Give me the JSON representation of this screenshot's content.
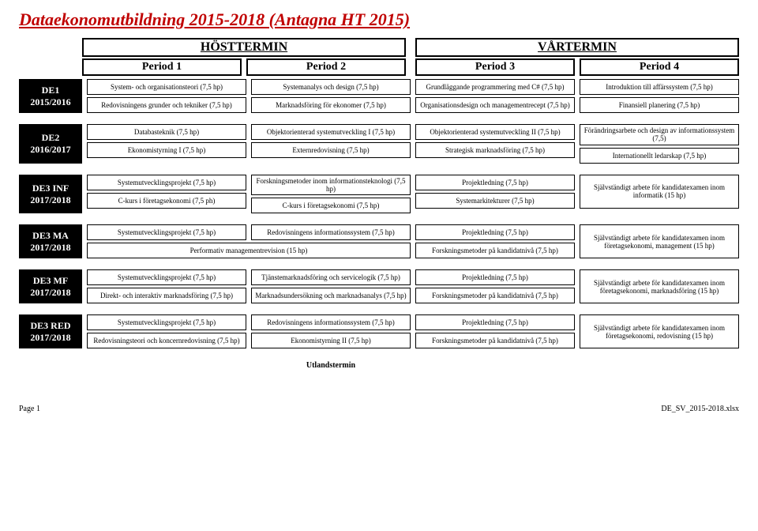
{
  "title": "Dataekonomutbildning 2015-2018 (Antagna HT 2015)",
  "terms": {
    "left": "HÖSTTERMIN",
    "right": "VÅRTERMIN"
  },
  "periods": [
    "Period 1",
    "Period 2",
    "Period 3",
    "Period 4"
  ],
  "rows": [
    {
      "label_line1": "DE1",
      "label_line2": "2015/2016",
      "cols": [
        [
          "System- och organisationsteori (7,5 hp)",
          "Redovisningens grunder och tekniker (7,5 hp)"
        ],
        [
          "Systemanalys och design (7,5 hp)",
          "Marknadsföring för ekonomer (7,5 hp)"
        ],
        [
          "Grundläggande programmering med C# (7,5 hp)",
          "Organisationsdesign och managementrecept (7,5 hp)"
        ],
        [
          "Introduktion till affärssystem (7,5 hp)",
          "Finansiell planering (7,5 hp)"
        ]
      ]
    },
    {
      "label_line1": "DE2",
      "label_line2": "2016/2017",
      "cols": [
        [
          "Databasteknik (7,5 hp)",
          "Ekonomistyrning I (7,5 hp)"
        ],
        [
          "Objektorienterad systemutveckling I (7,5 hp)",
          "Externredovisning (7,5 hp)"
        ],
        [
          "Objektorienterad systemutveckling II (7,5 hp)",
          "Strategisk marknadsföring (7,5 hp)"
        ],
        [
          "Förändringsarbete och design av informationssystem (7,5)",
          "Internationellt ledarskap (7,5 hp)"
        ]
      ]
    },
    {
      "label_line1": "DE3 INF",
      "label_line2": "2017/2018",
      "cols": [
        [
          "Systemutvecklingsprojekt (7,5 hp)",
          "C-kurs i företagsekonomi (7,5 ph)"
        ],
        [
          "Forskningsmetoder inom informationsteknologi (7,5 hp)",
          "C-kurs i företagsekonomi (7,5 hp)"
        ],
        [
          "Projektledning (7,5 hp)",
          "Systemarkitekturer (7,5 hp)"
        ],
        [
          {
            "text": "Självständigt arbete för kandidatexamen inom informatik (15 hp)",
            "tall": true
          }
        ]
      ]
    },
    {
      "label_line1": "DE3 MA",
      "label_line2": "2017/2018",
      "cols": [
        [
          "Systemutvecklingsprojekt (7,5 hp)",
          {
            "text": "Performativ managementrevision (15 hp)",
            "span": true
          }
        ],
        [
          "Redovisningens informationssystem (7,5 hp)"
        ],
        [
          "Projektledning (7,5 hp)",
          "Forskningsmetoder på kandidatnivå (7,5 hp)"
        ],
        [
          {
            "text": "Självständigt arbete för kandidatexamen inom företagsekonomi, management (15 hp)",
            "tall": true
          }
        ]
      ]
    },
    {
      "label_line1": "DE3 MF",
      "label_line2": "2017/2018",
      "cols": [
        [
          "Systemutvecklingsprojekt (7,5 hp)",
          "Direkt- och interaktiv marknadsföring (7,5 hp)"
        ],
        [
          "Tjänstemarknadsföring och servicelogik (7,5 hp)",
          "Marknadsundersökning och marknadsanalys (7,5 hp)"
        ],
        [
          "Projektledning (7,5 hp)",
          "Forskningsmetoder på kandidatnivå (7,5 hp)"
        ],
        [
          {
            "text": "Självständigt arbete för kandidatexamen inom företagsekonomi, marknadsföring (15 hp)",
            "tall": true
          }
        ]
      ]
    },
    {
      "label_line1": "DE3 RED",
      "label_line2": "2017/2018",
      "cols": [
        [
          "Systemutvecklingsprojekt (7,5 hp)",
          "Redovisningsteori och koncernredovisning (7,5 hp)"
        ],
        [
          "Redovisningens informationssystem (7,5 hp)",
          "Ekonomistyrning II (7,5 hp)"
        ],
        [
          "Projektledning (7,5 hp)",
          "Forskningsmetoder på kandidatnivå (7,5 hp)"
        ],
        [
          {
            "text": "Självständigt arbete för kandidatexamen inom företagsekonomi, redovisning (15 hp)",
            "tall": true
          }
        ]
      ]
    }
  ],
  "footer_note": "Utlandstermin",
  "footer_left": "Page 1",
  "footer_right": "DE_SV_2015-2018.xlsx"
}
